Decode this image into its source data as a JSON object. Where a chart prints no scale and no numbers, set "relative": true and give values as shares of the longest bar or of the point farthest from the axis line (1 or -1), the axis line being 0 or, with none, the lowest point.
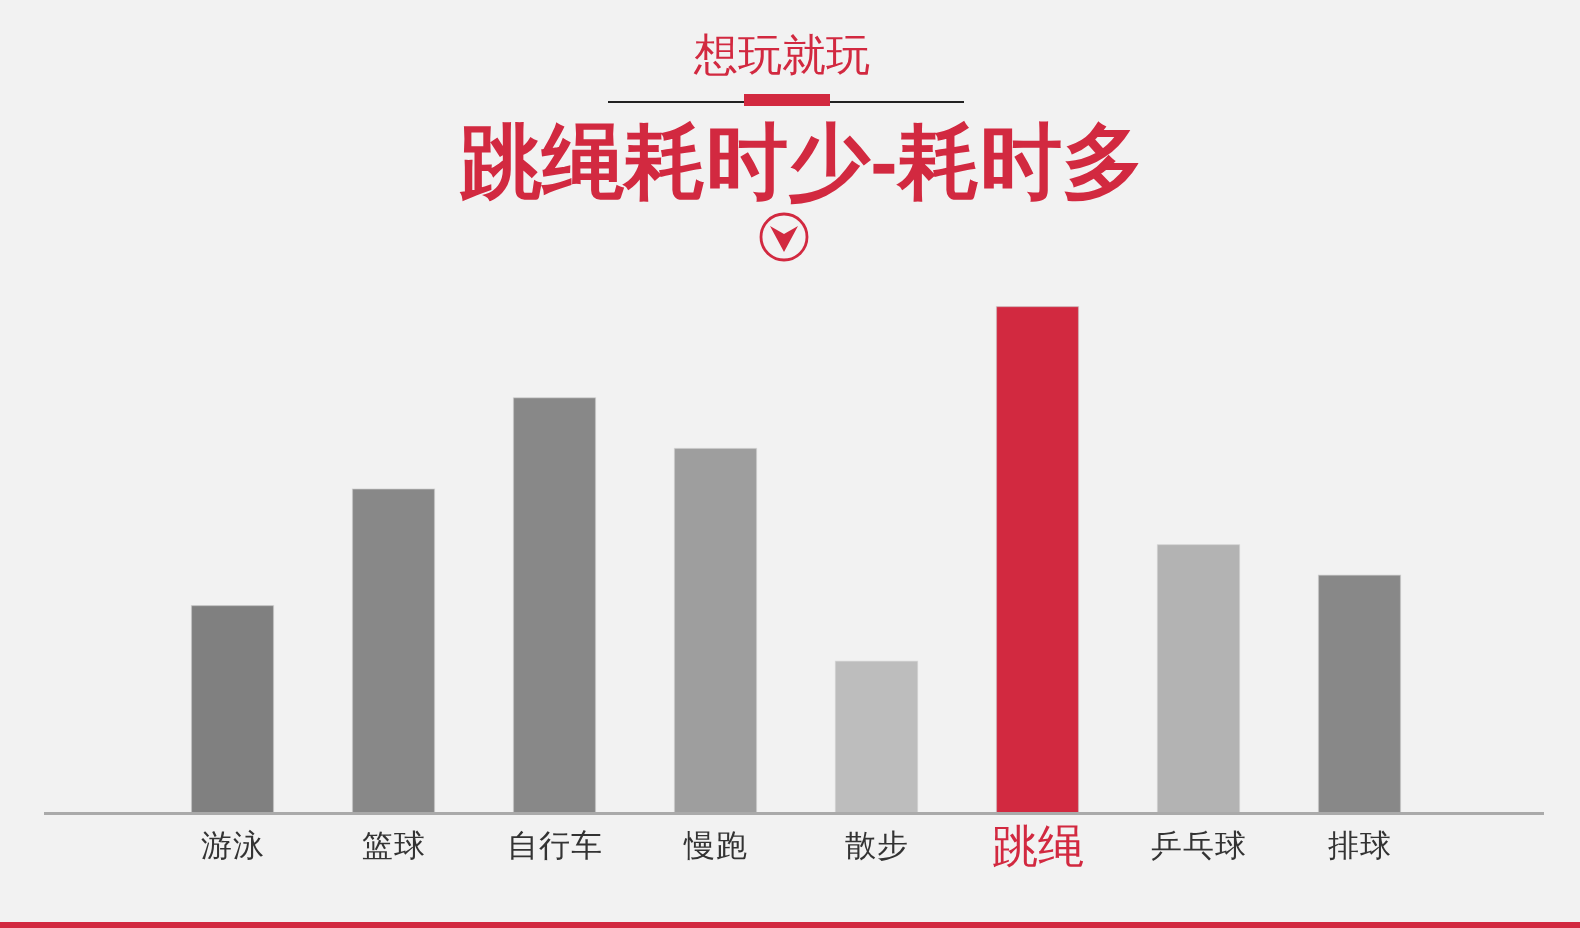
{
  "chart_data": {
    "type": "bar",
    "title": "跳绳耗时少-耗时多",
    "subtitle": "想玩就玩",
    "categories": [
      "游泳",
      "篮球",
      "自行车",
      "慢跑",
      "散步",
      "跳绳",
      "乒乓球",
      "排球"
    ],
    "values": [
      0.41,
      0.64,
      0.82,
      0.72,
      0.3,
      1,
      0.53,
      0.47
    ],
    "colors": [
      "#808080",
      "#888888",
      "#888888",
      "#9e9e9e",
      "#bdbdbd",
      "#d22940",
      "#b3b3b3",
      "#888888"
    ],
    "relative": true
  }
}
